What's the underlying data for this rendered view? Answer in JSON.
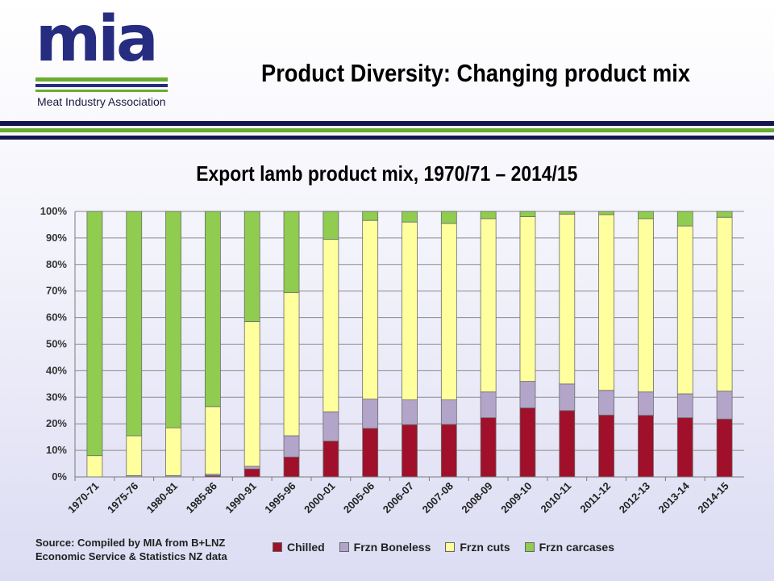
{
  "header": {
    "logo_text": "mia",
    "logo_subtitle": "Meat Industry Association",
    "title": "Product Diversity:  Changing product mix"
  },
  "colors": {
    "logo_navy": "#262d80",
    "rule_navy": "#14174f",
    "rule_green": "#6aac2e"
  },
  "chart_data": {
    "type": "bar",
    "stacked": true,
    "title": "Export lamb product mix, 1970/71 – 2014/15",
    "ylim": [
      0,
      100
    ],
    "y_ticks": [
      "0%",
      "10%",
      "20%",
      "30%",
      "40%",
      "50%",
      "60%",
      "70%",
      "80%",
      "90%",
      "100%"
    ],
    "grid": true,
    "legend_position": "bottom",
    "categories": [
      "1970-71",
      "1975-76",
      "1980-81",
      "1985-86",
      "1990-91",
      "1995-96",
      "2000-01",
      "2005-06",
      "2006-07",
      "2007-08",
      "2008-09",
      "2009-10",
      "2010-11",
      "2011-12",
      "2012-13",
      "2013-14",
      "2014-15"
    ],
    "series": [
      {
        "name": "Chilled",
        "color": "#a0102b",
        "values": [
          0,
          0,
          0,
          0.5,
          3,
          7.5,
          13.5,
          18.3,
          19.7,
          19.8,
          22.3,
          26,
          25,
          23.3,
          23.2,
          22.3,
          21.8
        ]
      },
      {
        "name": "Frzn Boneless",
        "color": "#b3a5c9",
        "values": [
          0,
          0.5,
          0.5,
          0.5,
          1,
          8,
          11,
          11,
          9.3,
          9.2,
          9.7,
          10,
          10,
          9.3,
          8.8,
          9,
          10.5
        ]
      },
      {
        "name": "Frzn cuts",
        "color": "#ffff9e",
        "values": [
          8,
          15,
          18,
          25.5,
          54.5,
          54,
          65,
          67.3,
          67,
          66.5,
          65.3,
          62,
          64,
          66.2,
          65.3,
          63.2,
          65.5
        ]
      },
      {
        "name": "Frzn carcases",
        "color": "#8fcc4f",
        "values": [
          92,
          84.5,
          81.5,
          73.5,
          41.5,
          30.5,
          10.5,
          3.4,
          4,
          4.5,
          2.7,
          2,
          1,
          1.2,
          2.7,
          5.5,
          2.2
        ]
      }
    ]
  },
  "source": {
    "line1": "Source:  Compiled by MIA from B+LNZ",
    "line2": "Economic Service & Statistics NZ data"
  }
}
